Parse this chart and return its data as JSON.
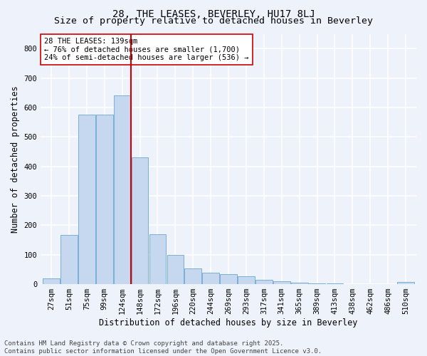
{
  "title": "28, THE LEASES, BEVERLEY, HU17 8LJ",
  "subtitle": "Size of property relative to detached houses in Beverley",
  "xlabel": "Distribution of detached houses by size in Beverley",
  "ylabel": "Number of detached properties",
  "bar_labels": [
    "27sqm",
    "51sqm",
    "75sqm",
    "99sqm",
    "124sqm",
    "148sqm",
    "172sqm",
    "196sqm",
    "220sqm",
    "244sqm",
    "269sqm",
    "293sqm",
    "317sqm",
    "341sqm",
    "365sqm",
    "389sqm",
    "413sqm",
    "438sqm",
    "462sqm",
    "486sqm",
    "510sqm"
  ],
  "bar_values": [
    20,
    168,
    575,
    575,
    640,
    430,
    170,
    100,
    53,
    40,
    35,
    28,
    15,
    10,
    5,
    3,
    2,
    1,
    1,
    0,
    7
  ],
  "bar_color": "#c5d8f0",
  "bar_edge_color": "#7aafd4",
  "vline_x": 4.5,
  "vline_color": "#cc0000",
  "annotation_text": "28 THE LEASES: 139sqm\n← 76% of detached houses are smaller (1,700)\n24% of semi-detached houses are larger (536) →",
  "annotation_box_color": "#ffffff",
  "annotation_box_edge": "#cc0000",
  "ylim": [
    0,
    850
  ],
  "yticks": [
    0,
    100,
    200,
    300,
    400,
    500,
    600,
    700,
    800
  ],
  "footer_line1": "Contains HM Land Registry data © Crown copyright and database right 2025.",
  "footer_line2": "Contains public sector information licensed under the Open Government Licence v3.0.",
  "bg_color": "#eef2fb",
  "grid_color": "#ffffff",
  "title_fontsize": 10,
  "axis_label_fontsize": 8.5,
  "tick_fontsize": 7.5,
  "annotation_fontsize": 7.5,
  "footer_fontsize": 6.5
}
